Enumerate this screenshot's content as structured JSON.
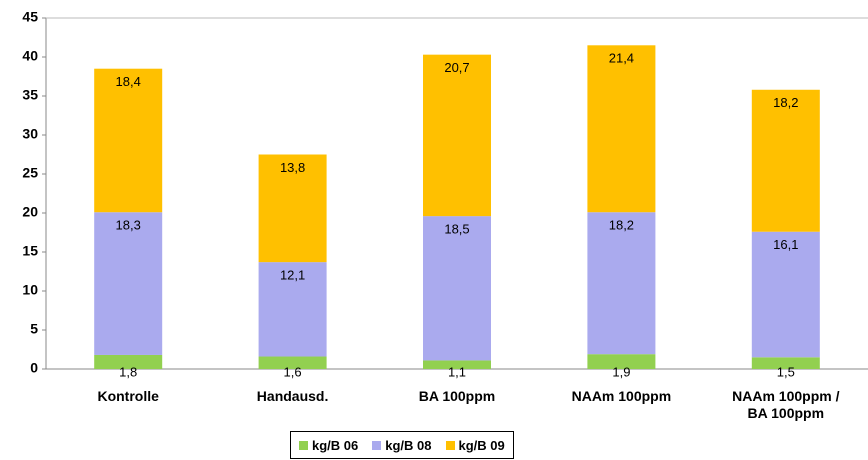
{
  "chart_data": {
    "type": "stacked-bar",
    "categories": [
      "Kontrolle",
      "Handausd.",
      "BA 100ppm",
      "NAAm 100ppm",
      "NAAm 100ppm /\nBA 100ppm"
    ],
    "series": [
      {
        "name": "kg/B 06",
        "color": "#92d050",
        "values": [
          1.8,
          1.6,
          1.1,
          1.9,
          1.5
        ],
        "value_labels": [
          "1,8",
          "1,6",
          "1,1",
          "1,9",
          "1,5"
        ]
      },
      {
        "name": "kg/B 08",
        "color": "#aaaaee",
        "values": [
          18.3,
          12.1,
          18.5,
          18.2,
          16.1
        ],
        "value_labels": [
          "18,3",
          "12,1",
          "18,5",
          "18,2",
          "16,1"
        ]
      },
      {
        "name": "kg/B 09",
        "color": "#ffc000",
        "values": [
          18.4,
          13.8,
          20.7,
          21.4,
          18.2
        ],
        "value_labels": [
          "18,4",
          "13,8",
          "20,7",
          "21,4",
          "18,2"
        ]
      }
    ],
    "ylim": [
      0,
      45
    ],
    "yticks": [
      0,
      5,
      10,
      15,
      20,
      25,
      30,
      35,
      40,
      45
    ],
    "grid": false
  }
}
